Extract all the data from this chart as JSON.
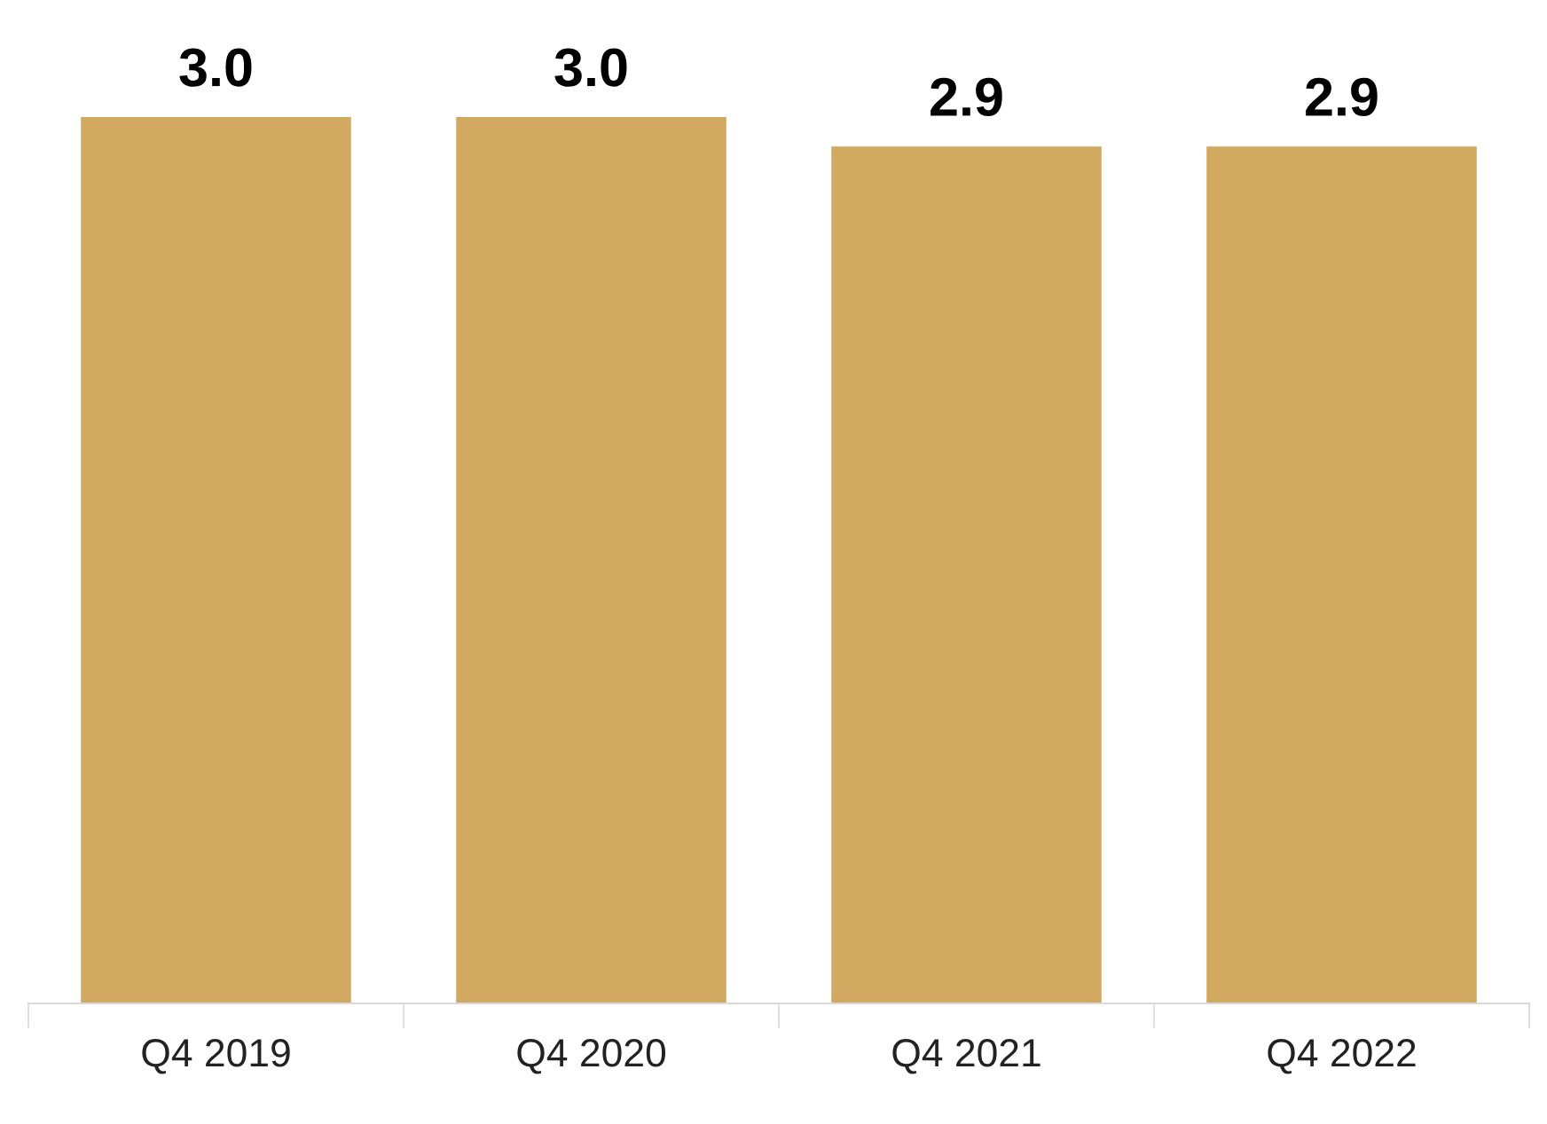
{
  "chart_data": {
    "type": "bar",
    "categories": [
      "Q4 2019",
      "Q4 2020",
      "Q4 2021",
      "Q4 2022"
    ],
    "values": [
      3.0,
      3.0,
      2.9,
      2.9
    ],
    "value_labels": [
      "3.0",
      "3.0",
      "2.9",
      "2.9"
    ],
    "color": "#d1a960",
    "ylim": [
      0,
      3.0
    ],
    "tick_labels": "x"
  }
}
